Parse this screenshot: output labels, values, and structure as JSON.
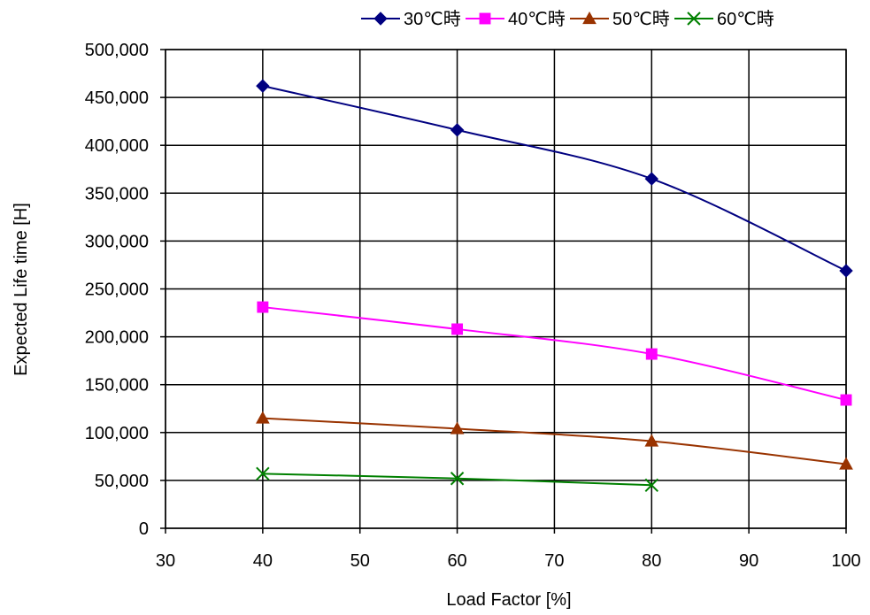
{
  "chart_data": {
    "type": "line",
    "title": "",
    "xlabel": "Load Factor [%]",
    "ylabel": "Expected Life time [H]",
    "xlim": [
      30,
      100
    ],
    "ylim": [
      0,
      500000
    ],
    "x_ticks": [
      "30",
      "40",
      "50",
      "60",
      "70",
      "80",
      "90",
      "100"
    ],
    "y_ticks": [
      "0",
      "50,000",
      "100,000",
      "150,000",
      "200,000",
      "250,000",
      "300,000",
      "350,000",
      "400,000",
      "450,000",
      "500,000"
    ],
    "grid": true,
    "legend_position": "top-right",
    "series": [
      {
        "name": "30℃時",
        "color": "#000080",
        "marker": "diamond",
        "x": [
          40,
          60,
          80,
          100
        ],
        "y": [
          462000,
          416000,
          365000,
          269000
        ]
      },
      {
        "name": "40℃時",
        "color": "#ff00ff",
        "marker": "square",
        "x": [
          40,
          60,
          80,
          100
        ],
        "y": [
          231000,
          208000,
          182000,
          134000
        ]
      },
      {
        "name": "50℃時",
        "color": "#993300",
        "marker": "triangle",
        "x": [
          40,
          60,
          80,
          100
        ],
        "y": [
          115000,
          104000,
          91000,
          67000
        ]
      },
      {
        "name": "60℃時",
        "color": "#008000",
        "marker": "x",
        "x": [
          40,
          60,
          80
        ],
        "y": [
          57000,
          52000,
          45000
        ]
      }
    ]
  }
}
